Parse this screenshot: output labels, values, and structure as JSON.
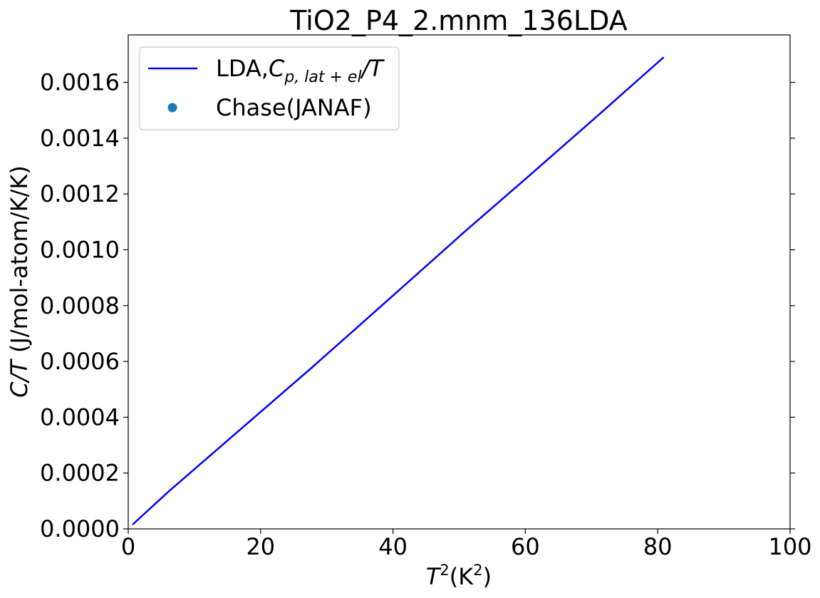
{
  "chart_data": {
    "type": "line",
    "title": "TiO2_P4_2.mnm_136LDA",
    "xlabel": {
      "main": "T",
      "sup1": "2",
      "mid": "(K",
      "sup2": "2",
      "end": ")"
    },
    "ylabel": {
      "italic": "C/T",
      "rest": " (J/mol-atom/K/K)"
    },
    "xlim": [
      0,
      100
    ],
    "ylim": [
      0,
      0.00177
    ],
    "x_ticks": [
      0,
      20,
      40,
      60,
      80,
      100
    ],
    "x_tick_labels": [
      "0",
      "20",
      "40",
      "60",
      "80",
      "100"
    ],
    "y_ticks": [
      0,
      0.0002,
      0.0004,
      0.0006,
      0.0008,
      0.001,
      0.0012,
      0.0014,
      0.0016
    ],
    "y_tick_labels": [
      "0.0000",
      "0.0002",
      "0.0004",
      "0.0006",
      "0.0008",
      "0.0010",
      "0.0012",
      "0.0014",
      "0.0016"
    ],
    "grid": false,
    "legend_position": "top-left",
    "series": [
      {
        "name": "LDA,C_{p,lat+el}/T",
        "legend_parts": {
          "prefix": "LDA,",
          "C": "C",
          "sub": "p, lat + el",
          "suffix": "/T"
        },
        "color": "#0000ff",
        "marker": "line",
        "x": [
          0.64,
          6.3,
          27.6,
          40.2,
          50.6,
          60.8,
          70.9,
          80.9
        ],
        "y": [
          1.5e-05,
          0.000138,
          0.000575,
          0.00084,
          0.00106,
          0.00127,
          0.00148,
          0.00169
        ]
      },
      {
        "name": "Chase(JANAF)",
        "color": "#1f77b4",
        "marker": "circle",
        "x": [],
        "y": []
      }
    ]
  }
}
